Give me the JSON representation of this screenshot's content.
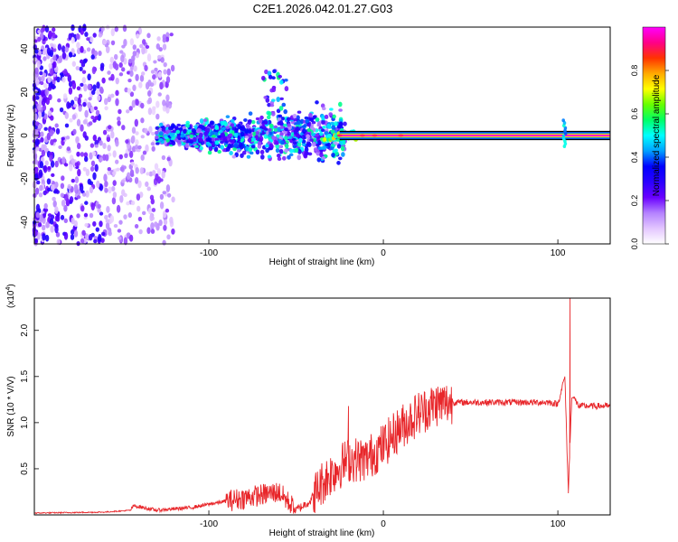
{
  "title": "C2E1.2026.042.01.27.G03",
  "chart_data": [
    {
      "type": "heatmap",
      "xlabel": "Height of straight line (km)",
      "ylabel": "Frequency (Hz)",
      "xlim": [
        -200,
        130
      ],
      "ylim": [
        -50,
        50
      ],
      "xticks": [
        -100,
        0,
        100
      ],
      "yticks": [
        -40,
        -20,
        0,
        20,
        40
      ],
      "description_series": [
        {
          "name": "scatter band",
          "x_range": [
            -200,
            -125
          ],
          "freq_range": [
            -50,
            50
          ],
          "amplitude": 0.15
        },
        {
          "name": "spread signal",
          "x_range": [
            -125,
            -20
          ],
          "freq_center": 0,
          "freq_spread_max": 25,
          "amplitude": 0.3
        },
        {
          "name": "tone",
          "x_range": [
            -25,
            130
          ],
          "freq": 0,
          "amplitude": 0.95
        },
        {
          "name": "spike",
          "x": 103,
          "freq_range": [
            -5,
            8
          ],
          "amplitude": 0.4
        }
      ],
      "colorbar": {
        "label": "Normalized spectral amplitude",
        "range": [
          0,
          1
        ],
        "ticks": [
          "0.0",
          "0.2",
          "0.4",
          "0.6",
          "0.8"
        ],
        "colors": [
          "#ffffff",
          "#e3c6ff",
          "#b482ff",
          "#6a00ff",
          "#2a00ff",
          "#0000ff",
          "#00a0ff",
          "#00ffff",
          "#00ff66",
          "#66ff00",
          "#ffff00",
          "#ffaa00",
          "#ff3300",
          "#ff0088",
          "#ff00ff"
        ]
      }
    },
    {
      "type": "line",
      "xlabel": "Height of straight line (km)",
      "ylabel": "SNR (10 * V/V)",
      "multiplier": "(x10^4)",
      "multiplier_base": "(x10",
      "multiplier_exp": "4",
      "xlim": [
        -200,
        130
      ],
      "ylim": [
        0,
        2.35
      ],
      "xticks": [
        -100,
        0,
        100
      ],
      "yticks": [
        "0.5",
        "1.0",
        "1.5",
        "2.0"
      ],
      "series": [
        {
          "name": "SNR",
          "color": "#e8262a",
          "x": [
            -200,
            -160,
            -145,
            -143,
            -130,
            -110,
            -90,
            -75,
            -60,
            -50,
            -42,
            -35,
            -30,
            -20,
            -10,
            0,
            10,
            20,
            30,
            40,
            60,
            80,
            95,
            100,
            104,
            106,
            108,
            112,
            130
          ],
          "y": [
            0.02,
            0.03,
            0.05,
            0.1,
            0.05,
            0.08,
            0.15,
            0.2,
            0.25,
            0.05,
            0.15,
            0.35,
            0.45,
            0.6,
            0.6,
            0.75,
            0.95,
            1.1,
            1.2,
            1.22,
            1.22,
            1.22,
            1.22,
            1.2,
            1.5,
            0.25,
            1.3,
            1.18,
            1.18
          ]
        }
      ],
      "spikes": [
        {
          "x": -20,
          "y": 1.18
        },
        {
          "x": 107,
          "y": 2.35
        },
        {
          "x": 106,
          "y": 0.27
        }
      ]
    }
  ]
}
